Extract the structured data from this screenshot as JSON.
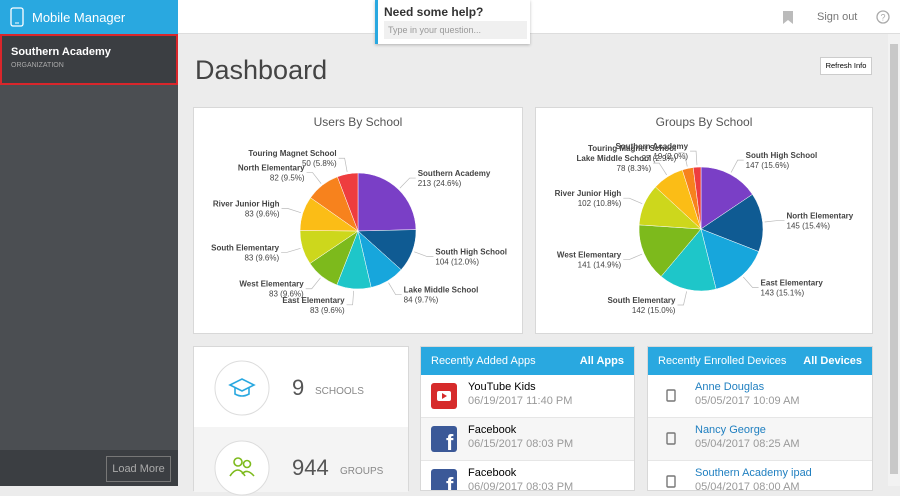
{
  "sidebar": {
    "brand": "Mobile Manager",
    "organization": {
      "name": "Southern Academy",
      "label": "ORGANIZATION"
    },
    "load_more": "Load More"
  },
  "header": {
    "help_title": "Need some help?",
    "help_placeholder": "Type in your question...",
    "sign_out": "Sign out"
  },
  "page": {
    "title": "Dashboard",
    "refresh": "Refresh Info"
  },
  "chart_data": [
    {
      "type": "pie",
      "title": "Users By School",
      "categories": [
        "Southern Academy",
        "South High School",
        "Lake Middle School",
        "East Elementary",
        "West Elementary",
        "South Elementary",
        "River Junior High",
        "North Elementary",
        "Touring Magnet School"
      ],
      "values": [
        213,
        104,
        84,
        83,
        83,
        83,
        83,
        82,
        50
      ],
      "value_labels": [
        "213 (24.6%)",
        "104 (12.0%)",
        "84 (9.7%)",
        "83 (9.6%)",
        "83 (9.6%)",
        "83 (9.6%)",
        "83 (9.6%)",
        "82 (9.5%)",
        "50 (5.8%)"
      ],
      "colors": [
        "#7a3fc6",
        "#0f5b93",
        "#17a6dc",
        "#1ec6c9",
        "#7dba1c",
        "#cdd71c",
        "#fbbd16",
        "#f7821d",
        "#ee3d3f"
      ]
    },
    {
      "type": "pie",
      "title": "Groups By School",
      "categories": [
        "South High School",
        "North Elementary",
        "East Elementary",
        "South Elementary",
        "West Elementary",
        "River Junior High",
        "Lake Middle School",
        "Touring Magnet School",
        "Southern Academy"
      ],
      "values": [
        147,
        145,
        143,
        142,
        141,
        102,
        78,
        27,
        19
      ],
      "value_labels": [
        "147 (15.6%)",
        "145 (15.4%)",
        "143 (15.1%)",
        "142 (15.0%)",
        "141 (14.9%)",
        "102 (10.8%)",
        "78 (8.3%)",
        "27 (2.9%)",
        "19 (2.0%)"
      ],
      "colors": [
        "#7a3fc6",
        "#0f5b93",
        "#17a6dc",
        "#1ec6c9",
        "#7dba1c",
        "#cdd71c",
        "#fbbd16",
        "#f7821d",
        "#ee3d3f"
      ]
    }
  ],
  "stats": [
    {
      "value": "9",
      "label": "SCHOOLS"
    },
    {
      "value": "944",
      "label": "GROUPS"
    }
  ],
  "apps": {
    "title": "Recently Added Apps",
    "link": "All Apps",
    "items": [
      {
        "name": "YouTube Kids",
        "date": "06/19/2017 11:40 PM"
      },
      {
        "name": "Facebook",
        "date": "06/15/2017 08:03 PM"
      },
      {
        "name": "Facebook",
        "date": "06/09/2017 08:03 PM"
      }
    ]
  },
  "devices": {
    "title": "Recently Enrolled Devices",
    "link": "All Devices",
    "items": [
      {
        "name": "Anne Douglas",
        "date": "05/05/2017 10:09 AM"
      },
      {
        "name": "Nancy George",
        "date": "05/04/2017 08:25 AM"
      },
      {
        "name": "Southern Academy ipad",
        "date": "05/04/2017 08:00 AM"
      }
    ]
  }
}
